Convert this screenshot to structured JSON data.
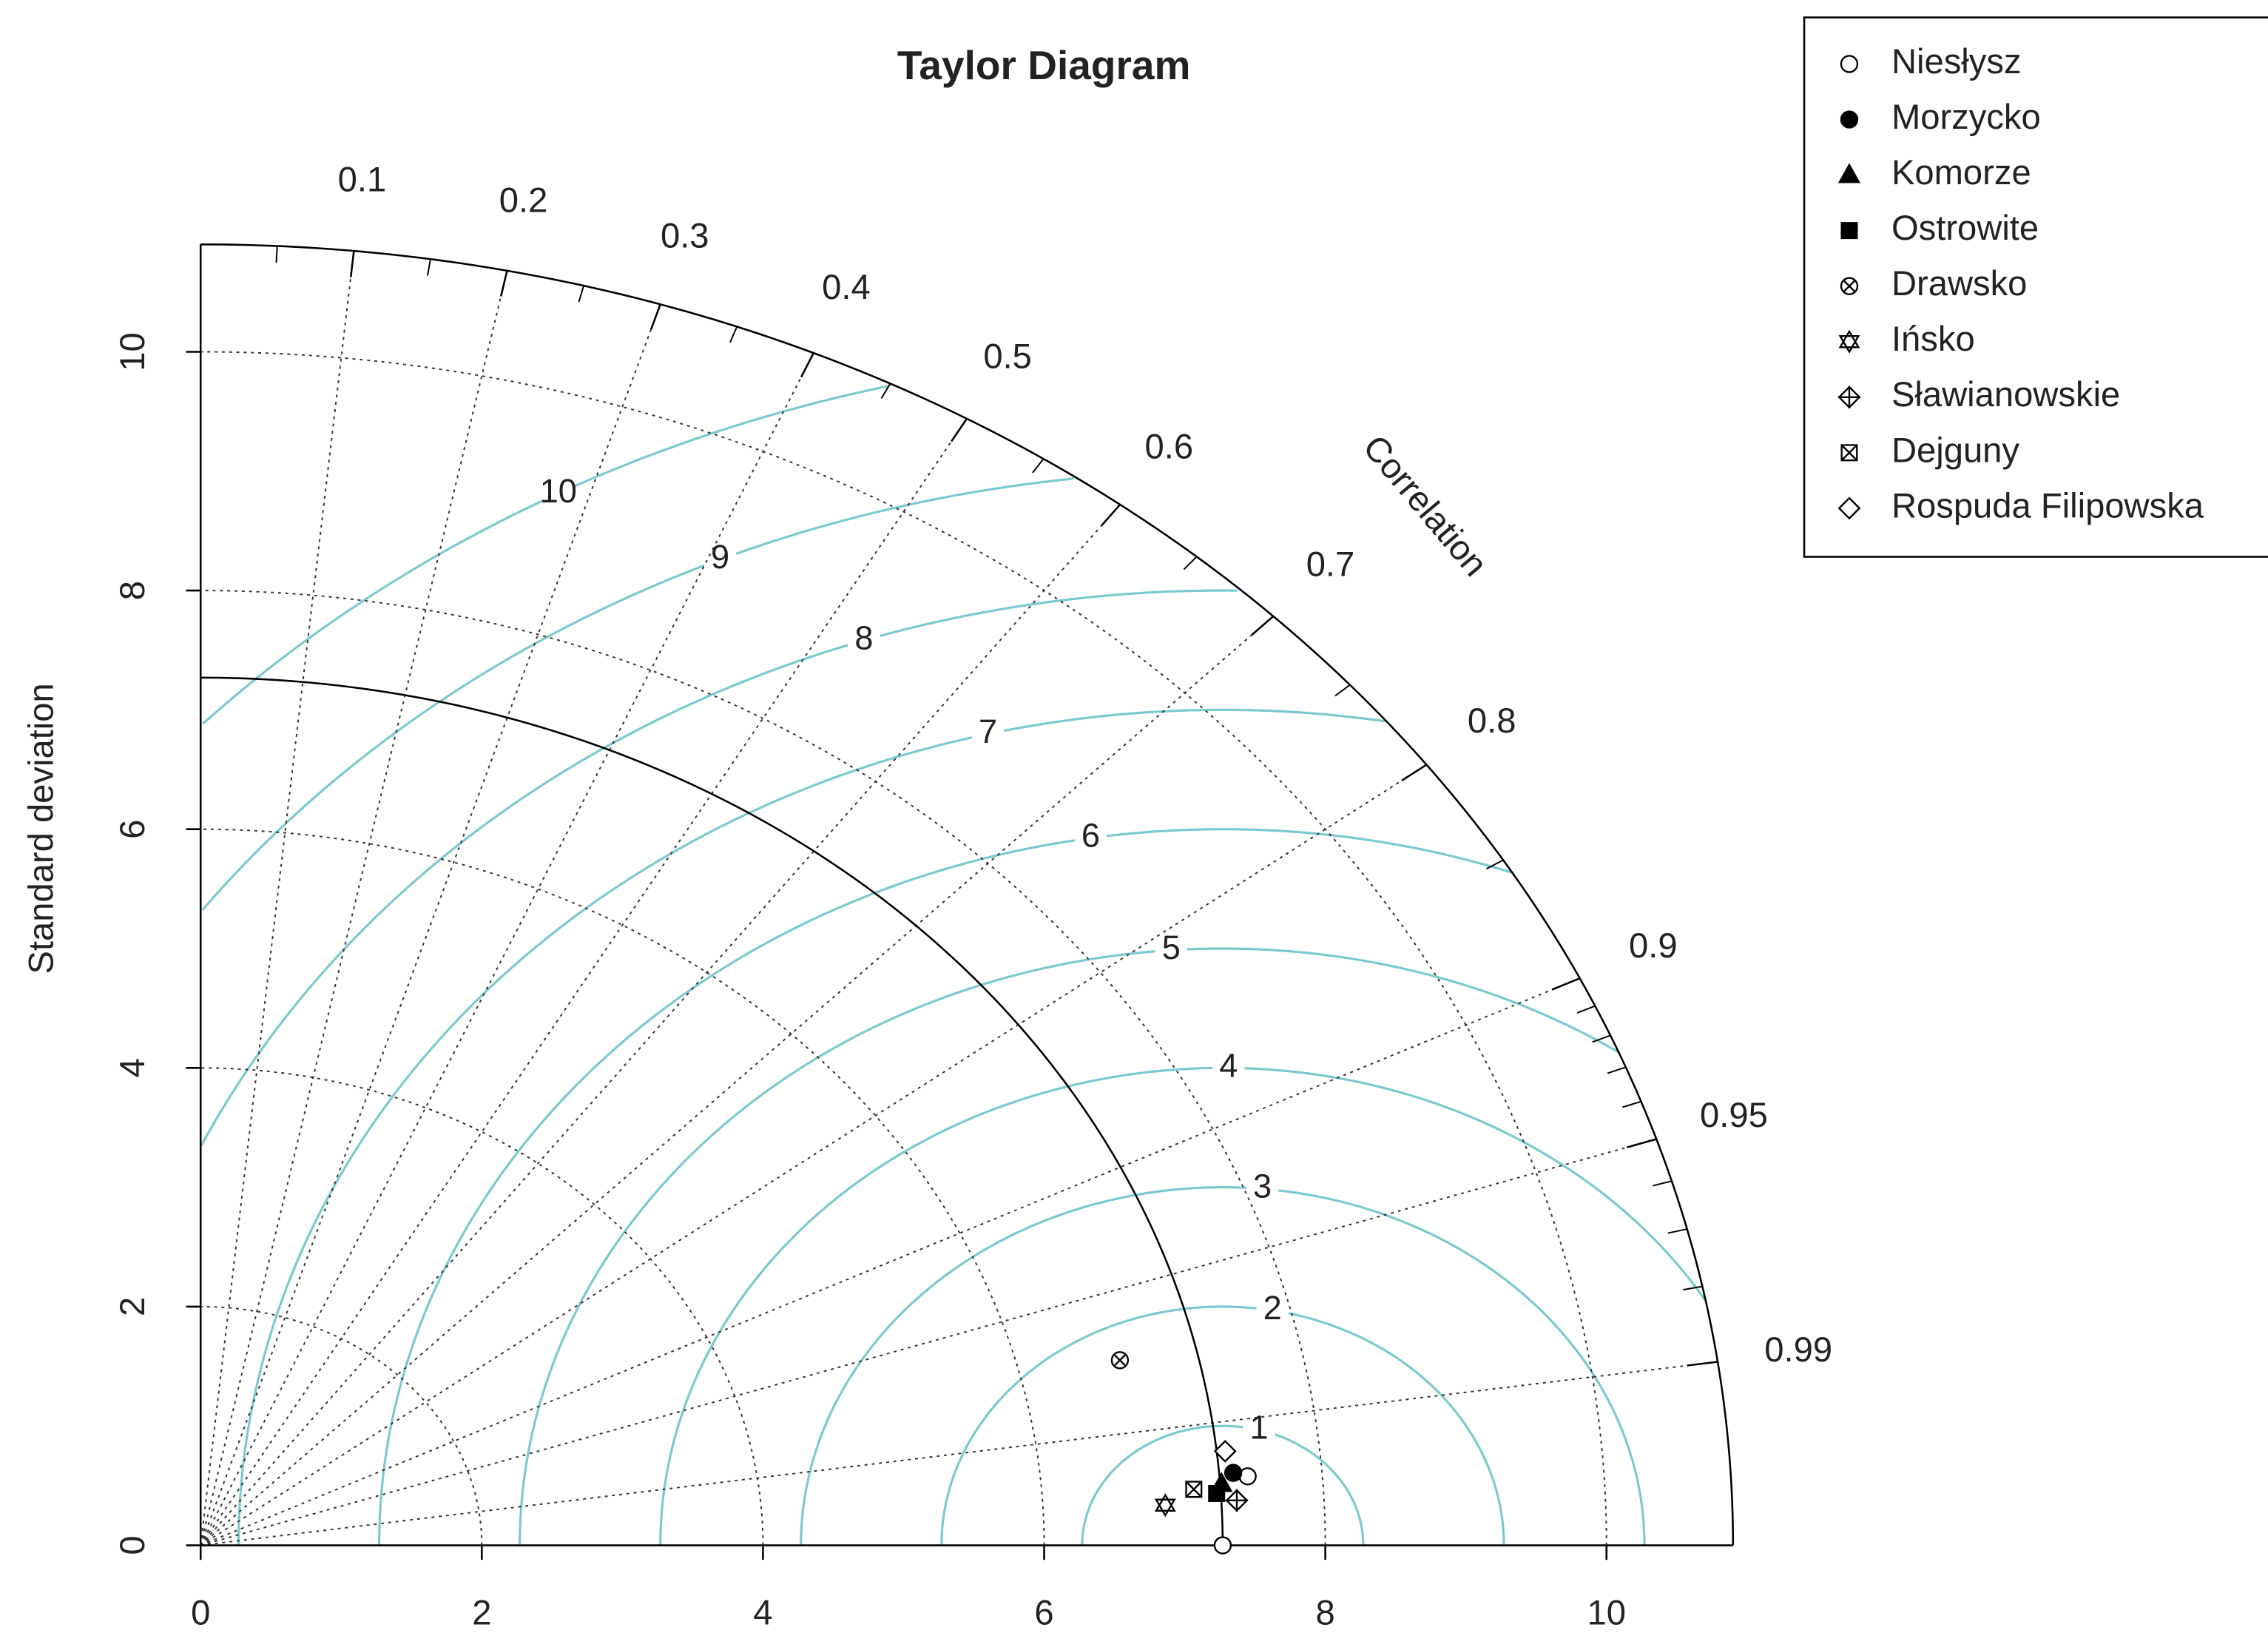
{
  "chart_data": {
    "type": "taylor",
    "title": "Taylor Diagram",
    "y_label": "Standard deviation",
    "cor_label": "Correlation",
    "xlim": [
      0,
      10.9
    ],
    "ylim": [
      0,
      10.9
    ],
    "xticks": [
      0,
      2,
      4,
      6,
      8,
      10
    ],
    "yticks": [
      0,
      2,
      4,
      6,
      8,
      10
    ],
    "ref_sd": 7.27,
    "cor_ticks": [
      0.1,
      0.2,
      0.3,
      0.4,
      0.5,
      0.6,
      0.7,
      0.8,
      0.9,
      0.95,
      0.99
    ],
    "cor_minor_ticks": [
      0.05,
      0.15,
      0.25,
      0.35,
      0.45,
      0.55,
      0.65,
      0.75,
      0.85,
      0.91,
      0.92,
      0.93,
      0.94,
      0.96,
      0.97,
      0.98
    ],
    "rms_contours": [
      1,
      2,
      3,
      4,
      5,
      6,
      7,
      8,
      9,
      10
    ],
    "contour_color": "#79c9cf",
    "legend": "topright",
    "series": [
      {
        "name": "Niesłysz",
        "marker": "circle-open",
        "sd": 7.47,
        "cor": 0.997
      },
      {
        "name": "Morzycko",
        "marker": "circle-filled",
        "sd": 7.37,
        "cor": 0.9966
      },
      {
        "name": "Komorze",
        "marker": "triangle-filled",
        "sd": 7.28,
        "cor": 0.9975
      },
      {
        "name": "Ostrowite",
        "marker": "square-filled",
        "sd": 7.24,
        "cor": 0.9982
      },
      {
        "name": "Drawsko",
        "marker": "circle-x",
        "sd": 6.72,
        "cor": 0.973
      },
      {
        "name": "Ińsko",
        "marker": "star-david",
        "sd": 6.87,
        "cor": 0.9988
      },
      {
        "name": "Sławianowskie",
        "marker": "diamond-plus",
        "sd": 7.38,
        "cor": 0.9987
      },
      {
        "name": "Dejguny",
        "marker": "square-x",
        "sd": 7.08,
        "cor": 0.9978
      },
      {
        "name": "Rospuda Filipowska",
        "marker": "diamond-open",
        "sd": 7.33,
        "cor": 0.9942
      }
    ]
  }
}
